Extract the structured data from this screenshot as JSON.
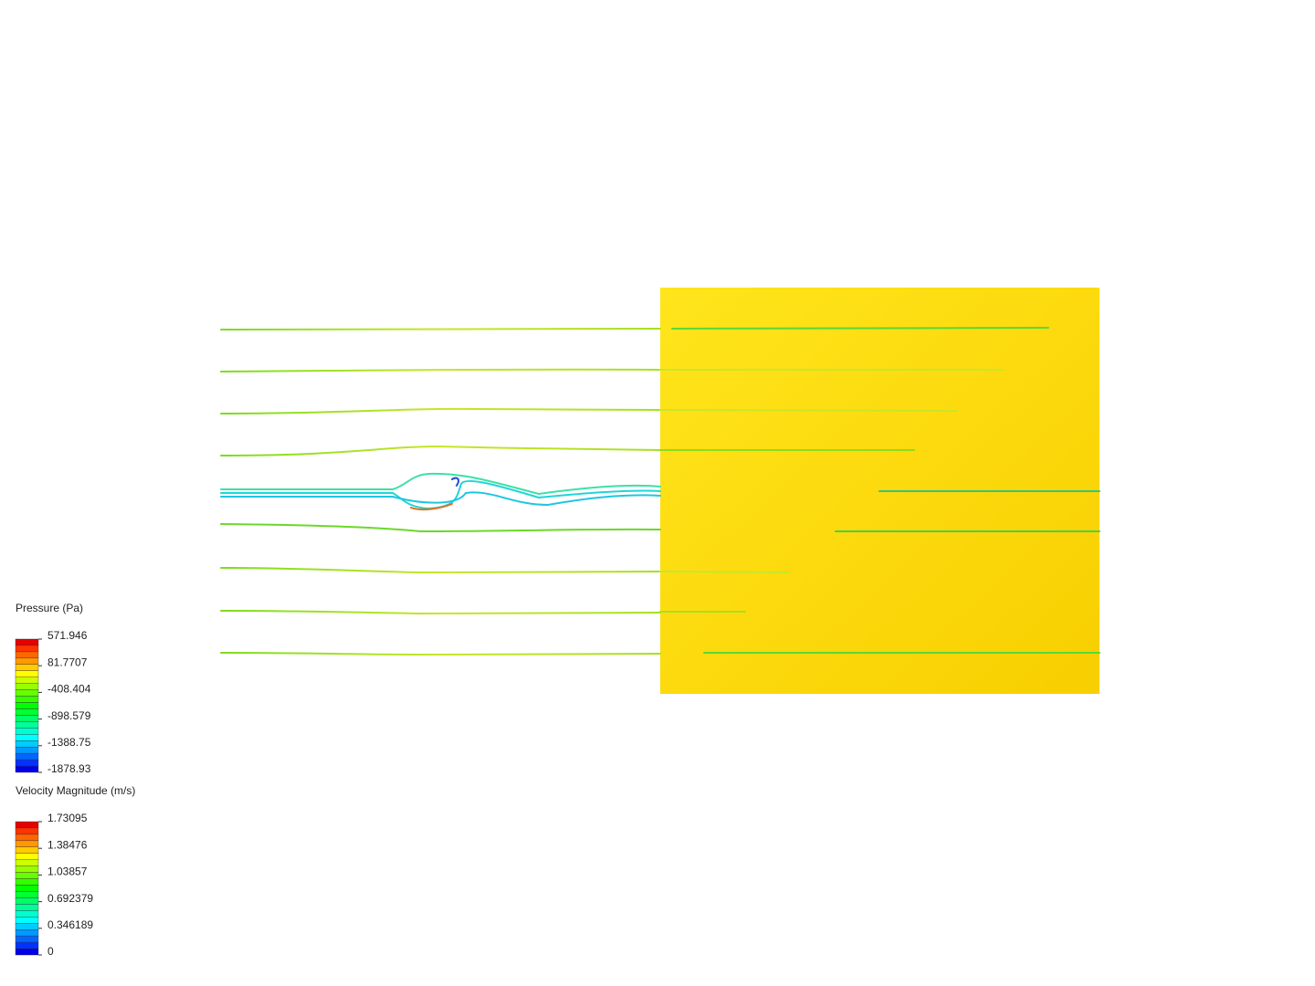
{
  "legends": [
    {
      "title": "Pressure (Pa)",
      "ticks": [
        571.946,
        81.7707,
        -408.404,
        -898.579,
        -1388.75,
        -1878.93
      ]
    },
    {
      "title": "Velocity Magnitude (m/s)",
      "ticks": [
        1.73095,
        1.38476,
        1.03857,
        0.692379,
        0.346189,
        0
      ]
    }
  ]
}
